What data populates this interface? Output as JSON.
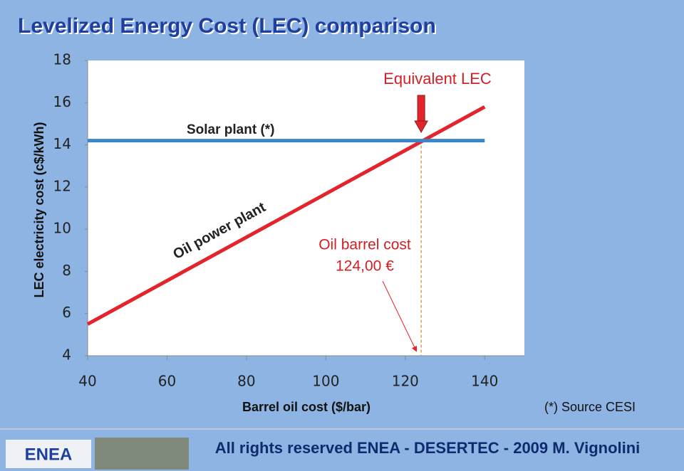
{
  "title": "Levelized Energy Cost (LEC) comparison",
  "chart_data": {
    "type": "line",
    "x_label": "Barrel oil cost ($/bar)",
    "y_label": "LEC electricity cost (c$/kWh)",
    "xlim": [
      40,
      150
    ],
    "xticks": [
      40,
      60,
      80,
      100,
      120,
      140
    ],
    "ylim": [
      4,
      18
    ],
    "yticks": [
      4,
      6,
      8,
      10,
      12,
      14,
      16,
      18
    ],
    "series": [
      {
        "name": "Oil power plant",
        "color": "#e4242c",
        "x": [
          40,
          140
        ],
        "values": [
          5.5,
          15.8
        ]
      },
      {
        "name": "Solar plant (*)",
        "color": "#3a86c8",
        "x": [
          40,
          140
        ],
        "values": [
          14.2,
          14.2
        ]
      }
    ],
    "equivalent": {
      "label": "Equivalent LEC",
      "x": 124,
      "y": 14.2
    },
    "annotation": {
      "line1": "Oil barrel cost",
      "line2": "124,00 €"
    }
  },
  "source": "(*) Source CESI",
  "footer": {
    "logo": "ENEA",
    "text": "All rights reserved   ENEA - DESERTEC -  2009   M. Vignolini"
  }
}
